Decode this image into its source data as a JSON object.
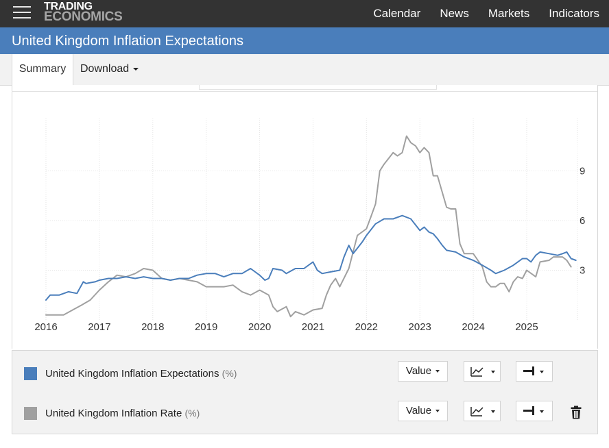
{
  "header": {
    "logo_line1": "TRADING",
    "logo_line2": "ECONOMICS",
    "nav": [
      "Calendar",
      "News",
      "Markets",
      "Indicators"
    ]
  },
  "page_title": "United Kingdom Inflation Expectations",
  "tabs": {
    "summary": "Summary",
    "download": "Download"
  },
  "legend": [
    {
      "name": "United Kingdom Inflation Expectations",
      "unit": "(%)",
      "color": "#4a7ebb",
      "value_label": "Value"
    },
    {
      "name": "United Kingdom Inflation Rate",
      "unit": "(%)",
      "color": "#a0a0a0",
      "value_label": "Value"
    }
  ],
  "chart_data": {
    "type": "line",
    "title": "",
    "xlabel": "",
    "ylabel": "",
    "x_ticks": [
      "2016",
      "2017",
      "2018",
      "2019",
      "2020",
      "2021",
      "2022",
      "2023",
      "2024",
      "2025"
    ],
    "y_ticks": [
      "3",
      "6",
      "9"
    ],
    "xlim": [
      2016.0,
      2025.95
    ],
    "ylim": [
      0,
      12.2
    ],
    "grid": true,
    "y_axis_side": "right",
    "series": [
      {
        "name": "United Kingdom Inflation Expectations",
        "color": "#4a7ebb",
        "points": [
          [
            2016.0,
            1.2
          ],
          [
            2016.08,
            1.5
          ],
          [
            2016.25,
            1.5
          ],
          [
            2016.42,
            1.7
          ],
          [
            2016.58,
            1.6
          ],
          [
            2016.7,
            2.3
          ],
          [
            2016.75,
            2.2
          ],
          [
            2016.92,
            2.3
          ],
          [
            2017.0,
            2.4
          ],
          [
            2017.17,
            2.5
          ],
          [
            2017.33,
            2.5
          ],
          [
            2017.5,
            2.6
          ],
          [
            2017.67,
            2.5
          ],
          [
            2017.83,
            2.6
          ],
          [
            2018.0,
            2.5
          ],
          [
            2018.17,
            2.5
          ],
          [
            2018.33,
            2.4
          ],
          [
            2018.5,
            2.5
          ],
          [
            2018.67,
            2.5
          ],
          [
            2018.83,
            2.7
          ],
          [
            2019.0,
            2.8
          ],
          [
            2019.17,
            2.8
          ],
          [
            2019.33,
            2.6
          ],
          [
            2019.5,
            2.8
          ],
          [
            2019.67,
            2.8
          ],
          [
            2019.83,
            3.1
          ],
          [
            2020.0,
            2.7
          ],
          [
            2020.1,
            2.4
          ],
          [
            2020.17,
            2.5
          ],
          [
            2020.25,
            3.1
          ],
          [
            2020.42,
            3.0
          ],
          [
            2020.5,
            2.8
          ],
          [
            2020.67,
            3.1
          ],
          [
            2020.83,
            3.1
          ],
          [
            2021.0,
            3.5
          ],
          [
            2021.08,
            3.0
          ],
          [
            2021.17,
            2.8
          ],
          [
            2021.33,
            2.9
          ],
          [
            2021.5,
            3.0
          ],
          [
            2021.58,
            3.8
          ],
          [
            2021.67,
            4.5
          ],
          [
            2021.75,
            4.0
          ],
          [
            2021.92,
            4.7
          ],
          [
            2022.0,
            5.1
          ],
          [
            2022.17,
            5.8
          ],
          [
            2022.33,
            6.1
          ],
          [
            2022.5,
            6.1
          ],
          [
            2022.67,
            6.3
          ],
          [
            2022.83,
            6.1
          ],
          [
            2023.0,
            5.4
          ],
          [
            2023.08,
            5.6
          ],
          [
            2023.17,
            5.3
          ],
          [
            2023.25,
            5.2
          ],
          [
            2023.33,
            4.9
          ],
          [
            2023.42,
            4.5
          ],
          [
            2023.5,
            4.2
          ],
          [
            2023.67,
            4.1
          ],
          [
            2023.83,
            3.8
          ],
          [
            2024.0,
            3.6
          ],
          [
            2024.17,
            3.3
          ],
          [
            2024.33,
            3.0
          ],
          [
            2024.42,
            2.8
          ],
          [
            2024.58,
            3.0
          ],
          [
            2024.75,
            3.3
          ],
          [
            2024.92,
            3.7
          ],
          [
            2025.0,
            3.7
          ],
          [
            2025.08,
            3.5
          ],
          [
            2025.17,
            3.9
          ],
          [
            2025.25,
            4.1
          ],
          [
            2025.42,
            4.0
          ],
          [
            2025.58,
            3.9
          ],
          [
            2025.67,
            4.0
          ],
          [
            2025.75,
            4.1
          ],
          [
            2025.83,
            3.7
          ],
          [
            2025.92,
            3.6
          ]
        ]
      },
      {
        "name": "United Kingdom Inflation Rate",
        "color": "#a0a0a0",
        "points": [
          [
            2016.0,
            0.3
          ],
          [
            2016.17,
            0.3
          ],
          [
            2016.33,
            0.3
          ],
          [
            2016.5,
            0.6
          ],
          [
            2016.67,
            0.9
          ],
          [
            2016.83,
            1.2
          ],
          [
            2017.0,
            1.8
          ],
          [
            2017.17,
            2.3
          ],
          [
            2017.33,
            2.7
          ],
          [
            2017.5,
            2.6
          ],
          [
            2017.67,
            2.8
          ],
          [
            2017.83,
            3.1
          ],
          [
            2018.0,
            3.0
          ],
          [
            2018.17,
            2.5
          ],
          [
            2018.33,
            2.4
          ],
          [
            2018.5,
            2.5
          ],
          [
            2018.67,
            2.4
          ],
          [
            2018.83,
            2.3
          ],
          [
            2019.0,
            2.0
          ],
          [
            2019.17,
            2.0
          ],
          [
            2019.33,
            2.0
          ],
          [
            2019.5,
            2.1
          ],
          [
            2019.67,
            1.7
          ],
          [
            2019.83,
            1.5
          ],
          [
            2020.0,
            1.8
          ],
          [
            2020.17,
            1.5
          ],
          [
            2020.25,
            0.8
          ],
          [
            2020.33,
            0.5
          ],
          [
            2020.5,
            0.8
          ],
          [
            2020.58,
            0.2
          ],
          [
            2020.67,
            0.5
          ],
          [
            2020.83,
            0.3
          ],
          [
            2021.0,
            0.6
          ],
          [
            2021.17,
            0.7
          ],
          [
            2021.25,
            1.5
          ],
          [
            2021.33,
            2.1
          ],
          [
            2021.42,
            2.5
          ],
          [
            2021.5,
            2.0
          ],
          [
            2021.67,
            3.1
          ],
          [
            2021.83,
            5.1
          ],
          [
            2022.0,
            5.5
          ],
          [
            2022.08,
            6.2
          ],
          [
            2022.17,
            7.0
          ],
          [
            2022.25,
            9.0
          ],
          [
            2022.33,
            9.4
          ],
          [
            2022.5,
            10.1
          ],
          [
            2022.58,
            9.9
          ],
          [
            2022.67,
            10.1
          ],
          [
            2022.75,
            11.1
          ],
          [
            2022.83,
            10.7
          ],
          [
            2022.92,
            10.5
          ],
          [
            2023.0,
            10.1
          ],
          [
            2023.08,
            10.4
          ],
          [
            2023.17,
            10.1
          ],
          [
            2023.25,
            8.7
          ],
          [
            2023.33,
            8.7
          ],
          [
            2023.5,
            6.8
          ],
          [
            2023.58,
            6.7
          ],
          [
            2023.67,
            6.7
          ],
          [
            2023.75,
            4.6
          ],
          [
            2023.83,
            4.0
          ],
          [
            2024.0,
            4.0
          ],
          [
            2024.17,
            3.2
          ],
          [
            2024.25,
            2.3
          ],
          [
            2024.33,
            2.0
          ],
          [
            2024.42,
            2.0
          ],
          [
            2024.5,
            2.2
          ],
          [
            2024.58,
            2.2
          ],
          [
            2024.67,
            1.7
          ],
          [
            2024.75,
            2.3
          ],
          [
            2024.83,
            2.6
          ],
          [
            2024.92,
            2.5
          ],
          [
            2025.0,
            3.0
          ],
          [
            2025.17,
            2.6
          ],
          [
            2025.25,
            3.5
          ],
          [
            2025.42,
            3.6
          ],
          [
            2025.5,
            3.8
          ],
          [
            2025.67,
            3.8
          ],
          [
            2025.75,
            3.6
          ],
          [
            2025.83,
            3.2
          ]
        ]
      }
    ]
  }
}
